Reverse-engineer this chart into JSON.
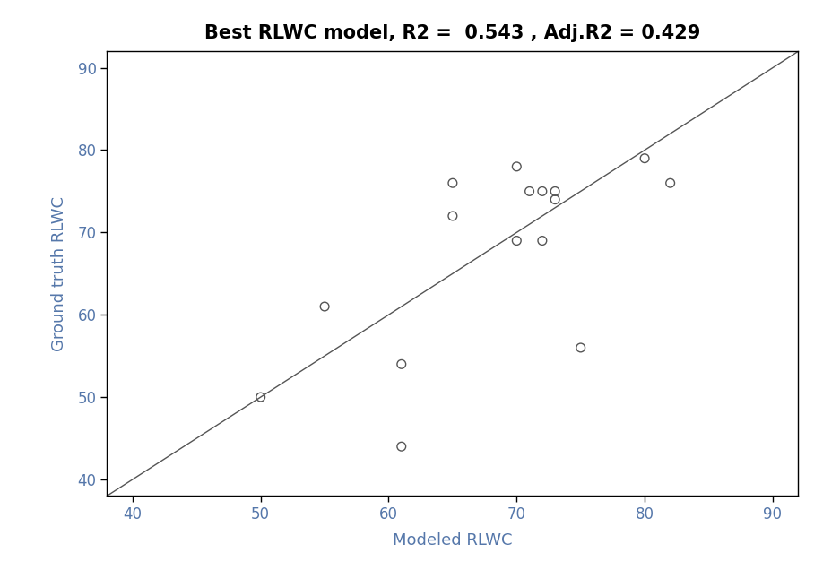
{
  "title": "Best RLWC model, R2 =  0.543 , Adj.R2 = 0.429",
  "xlabel": "Modeled RLWC",
  "ylabel": "Ground truth RLWC",
  "xlim": [
    38,
    92
  ],
  "ylim": [
    38,
    92
  ],
  "xticks": [
    40,
    50,
    60,
    70,
    80,
    90
  ],
  "yticks": [
    40,
    50,
    60,
    70,
    80,
    90
  ],
  "scatter_x": [
    50,
    55,
    61,
    61,
    65,
    65,
    70,
    70,
    71,
    72,
    72,
    73,
    73,
    75,
    80,
    82
  ],
  "scatter_y": [
    50,
    61,
    44,
    54,
    76,
    72,
    78,
    69,
    75,
    75,
    69,
    75,
    74,
    56,
    79,
    76
  ],
  "line_x": [
    38,
    92
  ],
  "line_y": [
    38,
    92
  ],
  "marker_color": "none",
  "marker_edgecolor": "#555555",
  "marker_size": 7,
  "line_color": "#555555",
  "title_fontsize": 15,
  "label_fontsize": 13,
  "tick_fontsize": 12,
  "title_fontweight": "bold",
  "label_fontweight": "normal",
  "background_color": "#ffffff",
  "tick_label_color": "#5577aa",
  "label_color": "#5577aa"
}
